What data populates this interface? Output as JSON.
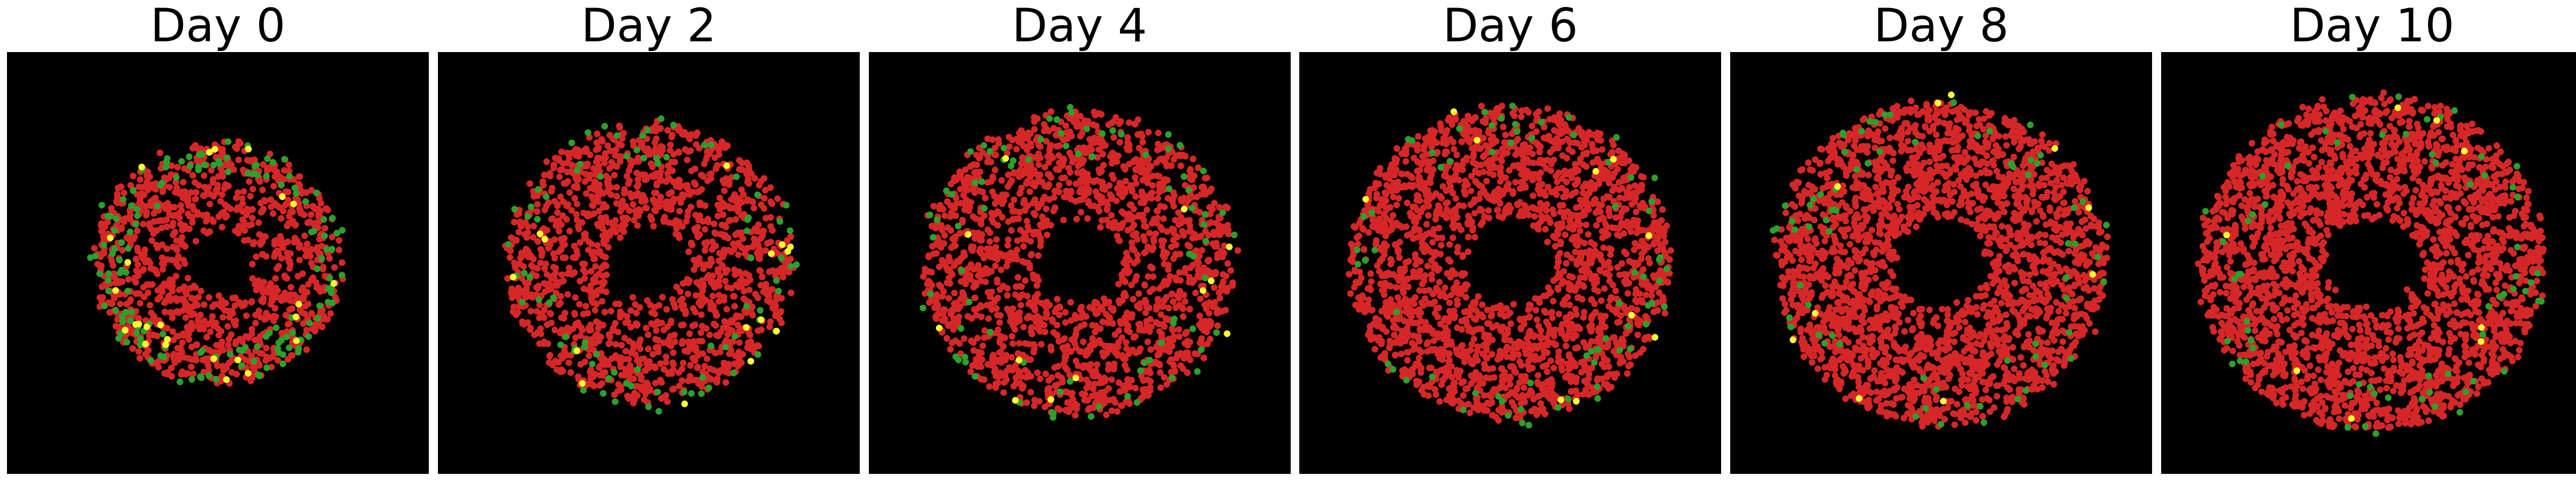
{
  "chart_data": {
    "type": "scatter",
    "description_panels": 6,
    "colors": {
      "background": "#000000",
      "red": "#d62728",
      "green": "#2ca02c",
      "yellow": "#ffff33"
    },
    "axes": {
      "visible": false,
      "grid": false,
      "legend": "none"
    },
    "panels": [
      {
        "title": "Day 0",
        "approx_points": {
          "red": 1100,
          "green": 150,
          "yellow": 25
        }
      },
      {
        "title": "Day 2",
        "approx_points": {
          "red": 1450,
          "green": 80,
          "yellow": 15
        }
      },
      {
        "title": "Day 4",
        "approx_points": {
          "red": 1800,
          "green": 80,
          "yellow": 12
        }
      },
      {
        "title": "Day 6",
        "approx_points": {
          "red": 2200,
          "green": 70,
          "yellow": 10
        }
      },
      {
        "title": "Day 8",
        "approx_points": {
          "red": 2500,
          "green": 70,
          "yellow": 10
        }
      },
      {
        "title": "Day 10",
        "approx_points": {
          "red": 2700,
          "green": 65,
          "yellow": 8
        }
      }
    ]
  }
}
